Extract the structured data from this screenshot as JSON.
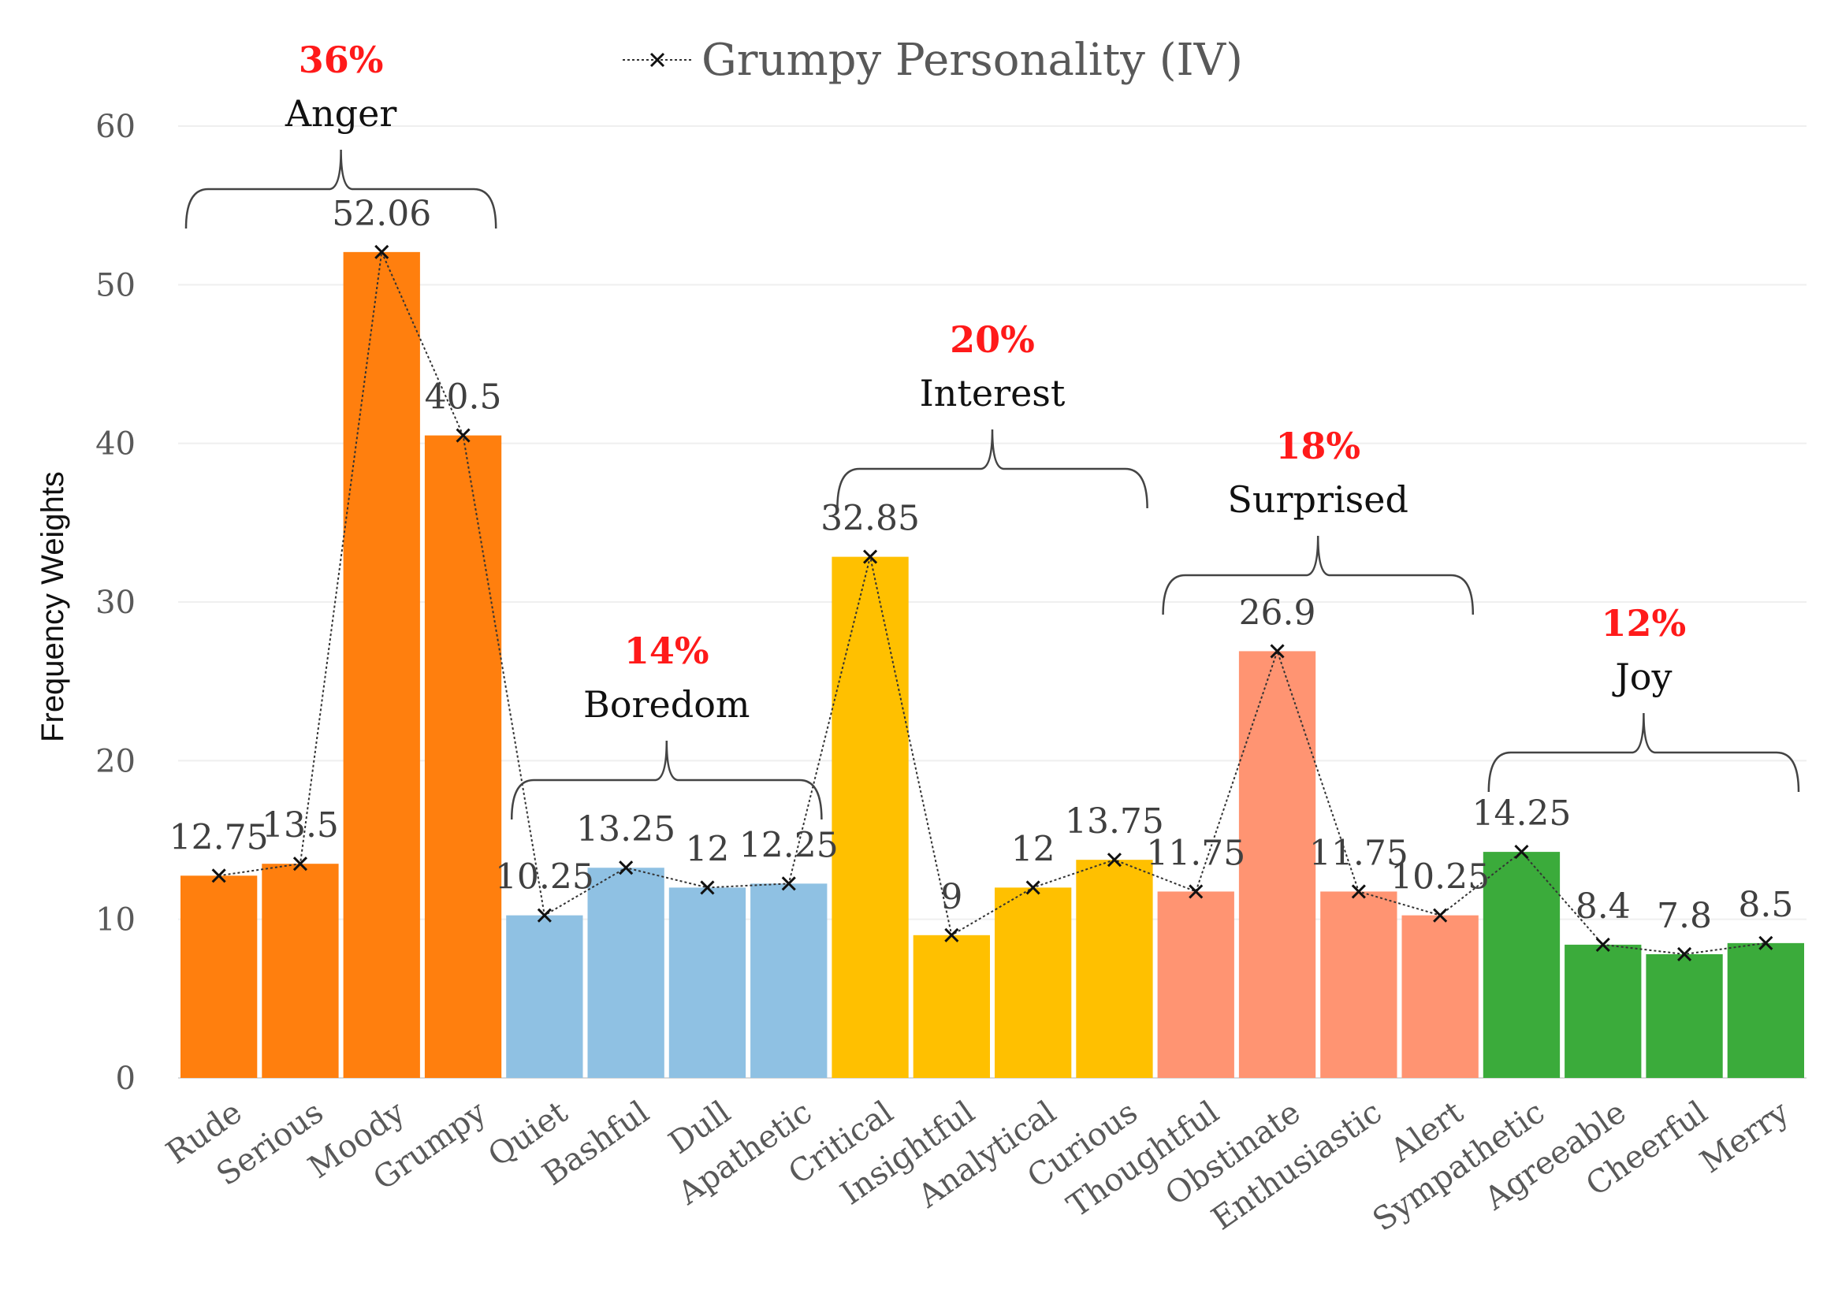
{
  "chart_data": {
    "type": "bar",
    "ylabel": "Frequency Weights",
    "xlabel": "",
    "ylim": [
      0,
      60
    ],
    "yticks": [
      0,
      10,
      20,
      30,
      40,
      50,
      60
    ],
    "grid": true,
    "legend": {
      "label": "Grumpy Personality (IV)",
      "position": "top"
    },
    "categories": [
      "Rude",
      "Serious",
      "Moody",
      "Grumpy",
      "Quiet",
      "Bashful",
      "Dull",
      "Apathetic",
      "Critical",
      "Insightful",
      "Analytical",
      "Curious",
      "Thoughtful",
      "Obstinate",
      "Enthusiastic",
      "Alert",
      "Sympathetic",
      "Agreeable",
      "Cheerful",
      "Merry"
    ],
    "values": [
      12.75,
      13.5,
      52.06,
      40.5,
      10.25,
      13.25,
      12,
      12.25,
      32.85,
      9,
      12,
      13.75,
      11.75,
      26.9,
      11.75,
      10.25,
      14.25,
      8.4,
      7.8,
      8.5
    ],
    "value_labels": [
      "12.75",
      "13.5",
      "52.06",
      "40.5",
      "10.25",
      "13.25",
      "12",
      "12.25",
      "32.85",
      "9",
      "12",
      "13.75",
      "11.75",
      "26.9",
      "11.75",
      "10.25",
      "14.25",
      "8.4",
      "7.8",
      "8.5"
    ],
    "groups": [
      {
        "name": "Anger",
        "percent": "36%",
        "start": 0,
        "end": 3,
        "color": "#ff7f0e"
      },
      {
        "name": "Boredom",
        "percent": "14%",
        "start": 4,
        "end": 7,
        "color": "#8fc1e3"
      },
      {
        "name": "Interest",
        "percent": "20%",
        "start": 8,
        "end": 11,
        "color": "#ffc000"
      },
      {
        "name": "Surprised",
        "percent": "18%",
        "start": 12,
        "end": 15,
        "color": "#ff9472"
      },
      {
        "name": "Joy",
        "percent": "12%",
        "start": 16,
        "end": 19,
        "color": "#3bab3b"
      }
    ]
  }
}
